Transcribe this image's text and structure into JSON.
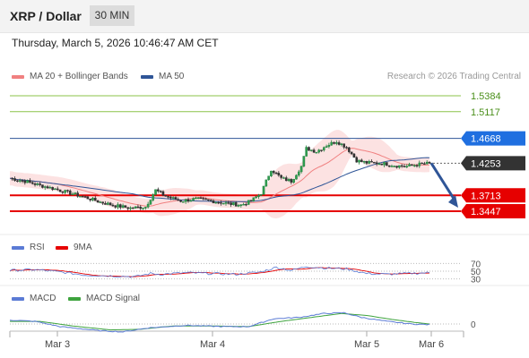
{
  "header": {
    "title": "XRP / Dollar",
    "interval": "30 MIN"
  },
  "timestamp": "Thursday, March 5, 2026 10:46:47 AM CET",
  "credit": "Research © 2026 Trading Central",
  "colors": {
    "ma20": "#f08080",
    "ma50": "#2f5597",
    "support": "#e60000",
    "current": "#333333",
    "up": "#1f7a3a",
    "down": "#333333",
    "rsi": "#5b7bd5",
    "rsi_ma": "#e60000",
    "macd": "#5b7bd5",
    "macd_signal": "#3ea33e"
  },
  "chart_data": {
    "type": "candlestick",
    "legend": [
      {
        "label": "MA 20 + Bollinger Bands",
        "color": "#f08080"
      },
      {
        "label": "MA 50",
        "color": "#2f5597"
      }
    ],
    "x_ticks": [
      "Mar 3",
      "Mar 4",
      "Mar 5",
      "Mar 6"
    ],
    "levels": [
      {
        "label": "1.5384",
        "value": 1.5384,
        "kind": "resistance"
      },
      {
        "label": "1.5117",
        "value": 1.5117,
        "kind": "resistance"
      },
      {
        "label": "1.4668",
        "value": 1.4668,
        "kind": "pivot"
      },
      {
        "label": "1.4253",
        "value": 1.4253,
        "kind": "current"
      },
      {
        "label": "1.3713",
        "value": 1.3713,
        "kind": "support"
      },
      {
        "label": "1.3447",
        "value": 1.3447,
        "kind": "support"
      }
    ],
    "price_anchors": [
      [
        0,
        1.4
      ],
      [
        6,
        1.395
      ],
      [
        12,
        1.388
      ],
      [
        18,
        1.382
      ],
      [
        24,
        1.375
      ],
      [
        30,
        1.368
      ],
      [
        36,
        1.36
      ],
      [
        42,
        1.354
      ],
      [
        48,
        1.35
      ],
      [
        54,
        1.352
      ],
      [
        58,
        1.38
      ],
      [
        62,
        1.37
      ],
      [
        68,
        1.362
      ],
      [
        74,
        1.365
      ],
      [
        80,
        1.362
      ],
      [
        86,
        1.358
      ],
      [
        92,
        1.355
      ],
      [
        96,
        1.362
      ],
      [
        100,
        1.375
      ],
      [
        104,
        1.415
      ],
      [
        108,
        1.4
      ],
      [
        112,
        1.395
      ],
      [
        116,
        1.42
      ],
      [
        118,
        1.45
      ],
      [
        122,
        1.445
      ],
      [
        126,
        1.455
      ],
      [
        130,
        1.462
      ],
      [
        134,
        1.452
      ],
      [
        138,
        1.43
      ],
      [
        142,
        1.426
      ],
      [
        148,
        1.425
      ],
      [
        154,
        1.421
      ],
      [
        158,
        1.42
      ],
      [
        162,
        1.423
      ],
      [
        167,
        1.425
      ]
    ],
    "forecast": {
      "from": 1.4253,
      "to": 1.3447
    },
    "rsi": {
      "legend": [
        {
          "label": "RSI",
          "color": "#5b7bd5"
        },
        {
          "label": "9MA",
          "color": "#e60000"
        }
      ],
      "ticks": [
        "70",
        "50",
        "30"
      ],
      "range": [
        20,
        80
      ],
      "anchors": [
        [
          0,
          52
        ],
        [
          10,
          54
        ],
        [
          20,
          48
        ],
        [
          30,
          40
        ],
        [
          40,
          38
        ],
        [
          50,
          36
        ],
        [
          56,
          44
        ],
        [
          60,
          42
        ],
        [
          70,
          46
        ],
        [
          80,
          44
        ],
        [
          90,
          42
        ],
        [
          100,
          48
        ],
        [
          106,
          60
        ],
        [
          112,
          52
        ],
        [
          118,
          62
        ],
        [
          126,
          58
        ],
        [
          134,
          56
        ],
        [
          142,
          44
        ],
        [
          150,
          42
        ],
        [
          158,
          44
        ],
        [
          167,
          46
        ]
      ]
    },
    "macd": {
      "legend": [
        {
          "label": "MACD",
          "color": "#5b7bd5"
        },
        {
          "label": "MACD Signal",
          "color": "#3ea33e"
        }
      ],
      "ticks": [
        "0"
      ],
      "range": [
        -0.03,
        0.03
      ],
      "macd_anchors": [
        [
          0,
          0.006
        ],
        [
          10,
          0.004
        ],
        [
          20,
          -0.004
        ],
        [
          35,
          -0.01
        ],
        [
          45,
          -0.012
        ],
        [
          55,
          -0.006
        ],
        [
          70,
          -0.002
        ],
        [
          85,
          -0.004
        ],
        [
          95,
          -0.004
        ],
        [
          105,
          0.008
        ],
        [
          115,
          0.01
        ],
        [
          125,
          0.016
        ],
        [
          133,
          0.017
        ],
        [
          140,
          0.01
        ],
        [
          150,
          0.004
        ],
        [
          160,
          0.0
        ],
        [
          167,
          -0.001
        ]
      ],
      "signal_anchors": [
        [
          0,
          0.004
        ],
        [
          12,
          0.004
        ],
        [
          25,
          -0.003
        ],
        [
          40,
          -0.009
        ],
        [
          52,
          -0.008
        ],
        [
          65,
          -0.003
        ],
        [
          80,
          -0.003
        ],
        [
          95,
          -0.004
        ],
        [
          108,
          0.004
        ],
        [
          120,
          0.01
        ],
        [
          132,
          0.016
        ],
        [
          142,
          0.013
        ],
        [
          152,
          0.007
        ],
        [
          162,
          0.002
        ],
        [
          167,
          0.0
        ]
      ]
    }
  }
}
